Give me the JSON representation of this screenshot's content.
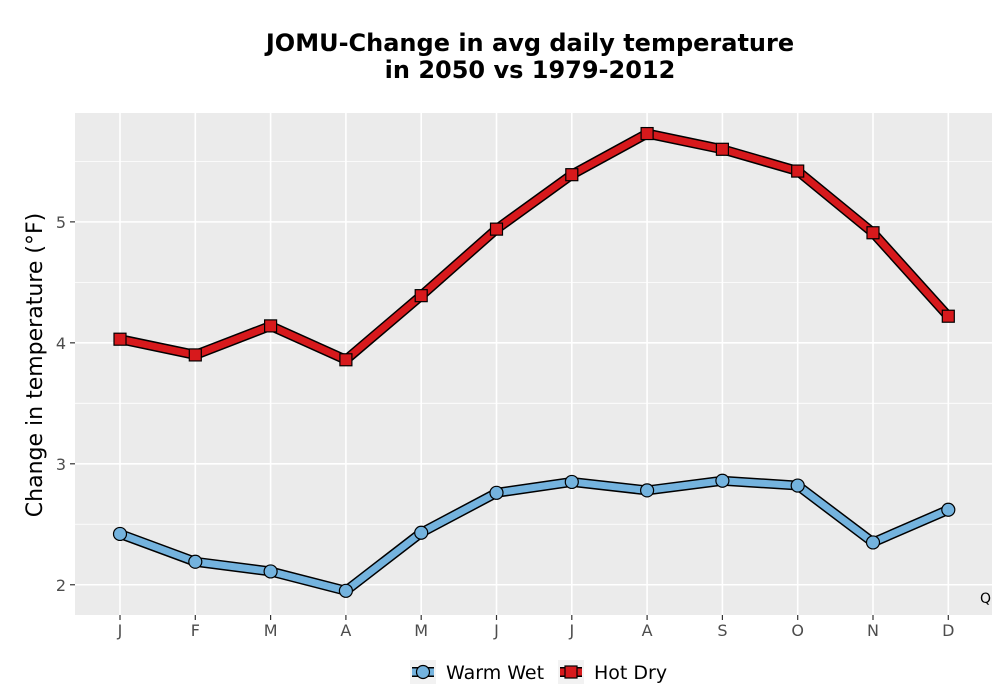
{
  "chart_data": {
    "type": "line",
    "title_line1": "JOMU-Change in avg daily temperature",
    "title_line2": "in 2050 vs 1979-2012",
    "xlabel": "",
    "ylabel": "Change in temperature (°F)",
    "categories": [
      "J",
      "F",
      "M",
      "A",
      "M",
      "J",
      "J",
      "A",
      "S",
      "O",
      "N",
      "D"
    ],
    "y_ticks": [
      2,
      3,
      4,
      5
    ],
    "ylim": [
      1.75,
      5.9
    ],
    "grid": true,
    "legend_position": "bottom",
    "corner_note": "Q",
    "series": [
      {
        "name": "Warm Wet",
        "color": "#74b3de",
        "marker": "circle",
        "values": [
          2.42,
          2.19,
          2.11,
          1.95,
          2.43,
          2.76,
          2.85,
          2.78,
          2.86,
          2.82,
          2.35,
          2.62
        ]
      },
      {
        "name": "Hot Dry",
        "color": "#d7191c",
        "marker": "square",
        "values": [
          4.03,
          3.9,
          4.14,
          3.86,
          4.39,
          4.94,
          5.39,
          5.73,
          5.6,
          5.42,
          4.91,
          4.22
        ]
      }
    ]
  }
}
